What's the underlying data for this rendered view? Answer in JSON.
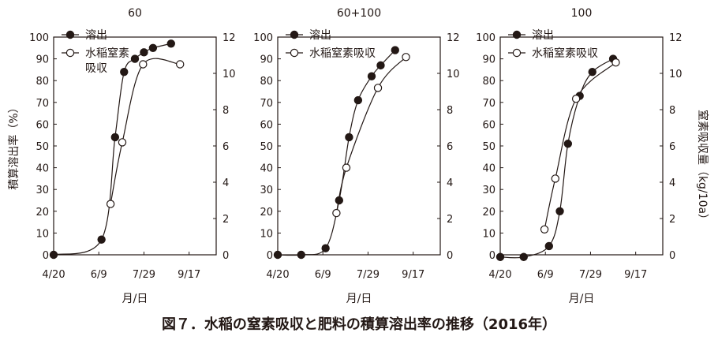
{
  "figure": {
    "caption": "図７．水稲の窒素吸収と肥料の積算溶出率の推移（2016年）",
    "ylabel_left": "積算溶出率（%）",
    "ylabel_right": "窒素吸収量（kg/10a）",
    "xlabel": "月/日"
  },
  "chart_data": [
    {
      "type": "line",
      "title": "60",
      "xlabel": "月/日",
      "ylabel": "積算溶出率（%）",
      "y2label": "窒素吸収量（kg/10a）",
      "x_ticks": [
        "4/20",
        "6/9",
        "7/29",
        "9/17"
      ],
      "x_tick_days": [
        0,
        50,
        100,
        150
      ],
      "ylim": [
        0,
        100
      ],
      "y2lim": [
        0,
        12
      ],
      "legend": [
        "溶出",
        "水稲窒素\n吸収"
      ],
      "legend_position": "top-left",
      "series": [
        {
          "name": "溶出",
          "marker": "filled-circle",
          "axis": "left",
          "x": [
            0,
            53,
            68,
            78,
            90,
            100,
            110,
            130
          ],
          "y": [
            0,
            7,
            54,
            84,
            90,
            93,
            95,
            97
          ]
        },
        {
          "name": "水稲窒素吸収",
          "marker": "open-circle",
          "axis": "right",
          "x": [
            63,
            76,
            99,
            140
          ],
          "y": [
            2.8,
            6.2,
            10.5,
            10.5
          ]
        }
      ]
    },
    {
      "type": "line",
      "title": "60+100",
      "xlabel": "月/日",
      "x_ticks": [
        "4/20",
        "6/9",
        "7/29",
        "9/17"
      ],
      "x_tick_days": [
        0,
        50,
        100,
        150
      ],
      "ylim": [
        0,
        100
      ],
      "y2lim": [
        0,
        12
      ],
      "legend": [
        "溶出",
        "水稲窒素吸収"
      ],
      "legend_position": "top-left",
      "series": [
        {
          "name": "溶出",
          "marker": "filled-circle",
          "axis": "left",
          "x": [
            0,
            26,
            53,
            68,
            79,
            89,
            104,
            114,
            130
          ],
          "y": [
            0,
            0,
            3,
            25,
            54,
            71,
            82,
            87,
            94
          ]
        },
        {
          "name": "水稲窒素吸収",
          "marker": "open-circle",
          "axis": "right",
          "x": [
            65,
            76,
            111,
            142
          ],
          "y": [
            2.3,
            4.8,
            9.2,
            10.9
          ]
        }
      ]
    },
    {
      "type": "line",
      "title": "100",
      "xlabel": "月/日",
      "x_ticks": [
        "4/20",
        "6/9",
        "7/29",
        "9/17"
      ],
      "x_tick_days": [
        0,
        50,
        100,
        150
      ],
      "ylim": [
        0,
        100
      ],
      "y2lim": [
        0,
        12
      ],
      "legend": [
        "溶出",
        "水稲窒素吸収"
      ],
      "legend_position": "top-left",
      "series": [
        {
          "name": "溶出",
          "marker": "filled-circle",
          "axis": "left",
          "x": [
            0,
            26,
            54,
            66,
            75,
            88,
            102,
            125
          ],
          "y": [
            -1,
            -1,
            4,
            20,
            51,
            73,
            84,
            90
          ]
        },
        {
          "name": "水稲窒素吸収",
          "marker": "open-circle",
          "axis": "right",
          "x": [
            49,
            61,
            84,
            128
          ],
          "y": [
            1.4,
            4.2,
            8.6,
            10.6
          ]
        }
      ]
    }
  ]
}
